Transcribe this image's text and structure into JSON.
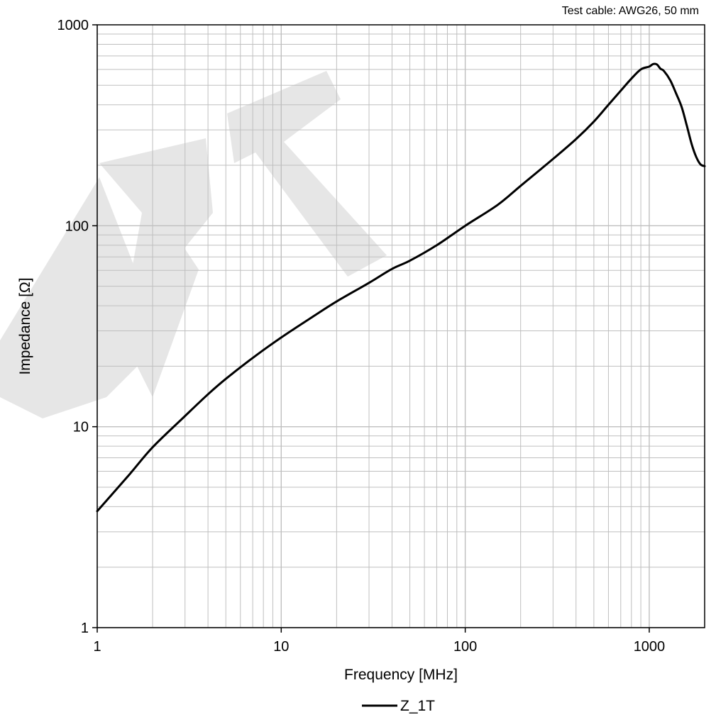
{
  "chart_data": {
    "type": "line",
    "title": "",
    "annotation": "Test cable: AWG26, 50 mm",
    "watermark": "DRAFT",
    "xlabel": "Frequency [MHz]",
    "ylabel": "Impedance [Ω]",
    "x_scale": "log",
    "y_scale": "log",
    "xlim": [
      1,
      2000
    ],
    "ylim": [
      1,
      1000
    ],
    "x_ticks": [
      {
        "value": 1,
        "label": "1"
      },
      {
        "value": 10,
        "label": "10"
      },
      {
        "value": 100,
        "label": "100"
      },
      {
        "value": 1000,
        "label": "1000"
      }
    ],
    "y_ticks": [
      {
        "value": 1,
        "label": "1"
      },
      {
        "value": 10,
        "label": "10"
      },
      {
        "value": 100,
        "label": "100"
      },
      {
        "value": 1000,
        "label": "1000"
      }
    ],
    "grid": true,
    "legend_position": "bottom-center",
    "colors": {
      "line": "#000000",
      "grid": "#bfbfbf",
      "axis": "#000000",
      "watermark": "#e6e6e6"
    },
    "series": [
      {
        "name": "Z_1T",
        "points": [
          [
            1,
            3.8
          ],
          [
            1.5,
            5.8
          ],
          [
            2,
            7.9
          ],
          [
            3,
            11.3
          ],
          [
            4,
            14.5
          ],
          [
            5,
            17.3
          ],
          [
            7,
            22
          ],
          [
            10,
            27.8
          ],
          [
            15,
            35.5
          ],
          [
            20,
            42
          ],
          [
            30,
            52
          ],
          [
            40,
            61
          ],
          [
            50,
            67
          ],
          [
            70,
            80
          ],
          [
            100,
            100
          ],
          [
            150,
            127
          ],
          [
            200,
            158
          ],
          [
            300,
            215
          ],
          [
            400,
            270
          ],
          [
            500,
            330
          ],
          [
            600,
            400
          ],
          [
            700,
            470
          ],
          [
            800,
            540
          ],
          [
            900,
            600
          ],
          [
            1000,
            620
          ],
          [
            1050,
            638
          ],
          [
            1100,
            635
          ],
          [
            1150,
            605
          ],
          [
            1200,
            590
          ],
          [
            1300,
            530
          ],
          [
            1400,
            455
          ],
          [
            1500,
            390
          ],
          [
            1600,
            315
          ],
          [
            1700,
            255
          ],
          [
            1800,
            220
          ],
          [
            1900,
            202
          ],
          [
            2000,
            198
          ]
        ]
      }
    ]
  }
}
